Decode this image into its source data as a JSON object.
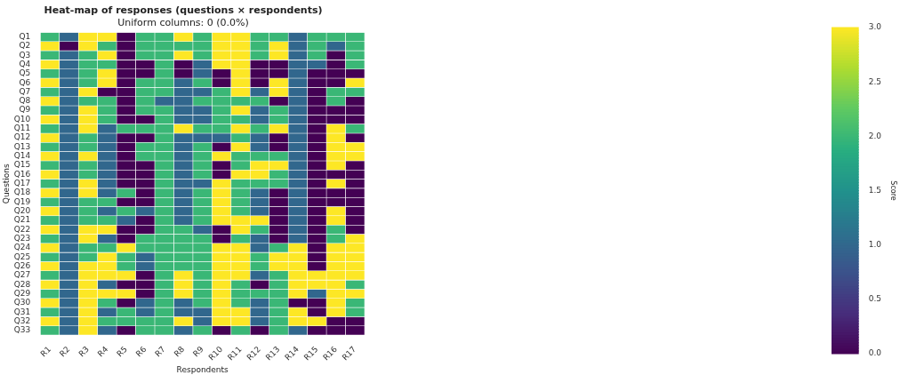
{
  "chart_data": {
    "type": "heatmap",
    "title": "Heat-map of responses (questions × respondents)",
    "subtitle": "Uniform columns: 0 (0.0%)",
    "xlabel": "Respondents",
    "ylabel": "Questions",
    "clabel": "Score",
    "categories": [
      "R1",
      "R2",
      "R3",
      "R4",
      "R5",
      "R6",
      "R7",
      "R8",
      "R9",
      "R10",
      "R11",
      "R12",
      "R13",
      "R14",
      "R15",
      "R16",
      "R17"
    ],
    "y_categories": [
      "Q1",
      "Q2",
      "Q3",
      "Q4",
      "Q5",
      "Q6",
      "Q7",
      "Q8",
      "Q9",
      "Q10",
      "Q11",
      "Q12",
      "Q13",
      "Q14",
      "Q15",
      "Q16",
      "Q17",
      "Q18",
      "Q19",
      "Q20",
      "Q21",
      "Q22",
      "Q23",
      "Q24",
      "Q25",
      "Q26",
      "Q27",
      "Q28",
      "Q29",
      "Q30",
      "Q31",
      "Q32",
      "Q33"
    ],
    "cells": [
      [
        2,
        1,
        3,
        3,
        0,
        2,
        2,
        3,
        2,
        3,
        3,
        2,
        2,
        1,
        2,
        2,
        2
      ],
      [
        3,
        0,
        3,
        2,
        0,
        2,
        2,
        2,
        2,
        3,
        3,
        2,
        3,
        1,
        2,
        1,
        2
      ],
      [
        2,
        1,
        2,
        3,
        0,
        2,
        2,
        3,
        2,
        3,
        3,
        2,
        3,
        1,
        2,
        0,
        2
      ],
      [
        3,
        1,
        2,
        2,
        0,
        0,
        2,
        0,
        1,
        3,
        3,
        0,
        0,
        1,
        1,
        0,
        2
      ],
      [
        2,
        1,
        2,
        3,
        0,
        0,
        2,
        0,
        1,
        0,
        3,
        0,
        0,
        1,
        0,
        0,
        0
      ],
      [
        3,
        1,
        2,
        3,
        0,
        2,
        2,
        1,
        2,
        0,
        3,
        0,
        3,
        1,
        0,
        0,
        3
      ],
      [
        2,
        1,
        3,
        0,
        0,
        2,
        2,
        1,
        1,
        2,
        3,
        1,
        3,
        1,
        0,
        2,
        2
      ],
      [
        3,
        1,
        2,
        2,
        0,
        2,
        1,
        1,
        2,
        2,
        2,
        2,
        0,
        1,
        0,
        2,
        0
      ],
      [
        2,
        1,
        3,
        2,
        0,
        2,
        2,
        1,
        1,
        2,
        3,
        1,
        2,
        1,
        0,
        0,
        0
      ],
      [
        3,
        1,
        3,
        2,
        0,
        0,
        2,
        1,
        1,
        2,
        2,
        1,
        2,
        1,
        0,
        0,
        0
      ],
      [
        2,
        1,
        3,
        1,
        2,
        2,
        2,
        3,
        2,
        2,
        3,
        2,
        3,
        1,
        0,
        3,
        2
      ],
      [
        3,
        1,
        2,
        1,
        0,
        0,
        2,
        1,
        1,
        1,
        2,
        1,
        0,
        1,
        0,
        3,
        0
      ],
      [
        2,
        1,
        2,
        1,
        0,
        2,
        2,
        1,
        2,
        0,
        3,
        1,
        0,
        1,
        0,
        3,
        3
      ],
      [
        3,
        1,
        3,
        1,
        0,
        2,
        2,
        1,
        2,
        3,
        2,
        2,
        2,
        1,
        0,
        3,
        3
      ],
      [
        2,
        1,
        2,
        1,
        0,
        0,
        2,
        1,
        2,
        0,
        2,
        3,
        3,
        1,
        0,
        3,
        0
      ],
      [
        3,
        1,
        2,
        1,
        0,
        0,
        2,
        1,
        2,
        0,
        3,
        3,
        2,
        1,
        0,
        0,
        0
      ],
      [
        2,
        1,
        3,
        1,
        0,
        0,
        2,
        1,
        1,
        3,
        2,
        2,
        2,
        1,
        0,
        3,
        0
      ],
      [
        3,
        1,
        3,
        1,
        2,
        0,
        2,
        1,
        2,
        3,
        2,
        1,
        0,
        1,
        0,
        0,
        0
      ],
      [
        2,
        1,
        2,
        2,
        0,
        0,
        2,
        1,
        2,
        3,
        2,
        1,
        0,
        1,
        0,
        0,
        0
      ],
      [
        3,
        1,
        2,
        1,
        2,
        1,
        2,
        1,
        2,
        3,
        2,
        1,
        0,
        1,
        0,
        3,
        0
      ],
      [
        2,
        1,
        2,
        2,
        1,
        0,
        2,
        1,
        2,
        3,
        3,
        3,
        0,
        1,
        0,
        3,
        0
      ],
      [
        3,
        1,
        3,
        3,
        0,
        0,
        2,
        2,
        1,
        0,
        3,
        2,
        0,
        1,
        0,
        2,
        0
      ],
      [
        2,
        1,
        3,
        1,
        0,
        2,
        2,
        2,
        2,
        0,
        2,
        1,
        0,
        1,
        0,
        2,
        3
      ],
      [
        3,
        1,
        2,
        2,
        3,
        2,
        2,
        2,
        2,
        3,
        3,
        1,
        2,
        3,
        0,
        3,
        3
      ],
      [
        2,
        1,
        2,
        3,
        2,
        1,
        2,
        2,
        2,
        3,
        3,
        2,
        3,
        3,
        0,
        3,
        3
      ],
      [
        3,
        1,
        3,
        3,
        2,
        1,
        2,
        2,
        2,
        3,
        3,
        2,
        3,
        3,
        0,
        3,
        3
      ],
      [
        2,
        1,
        3,
        3,
        3,
        0,
        2,
        3,
        2,
        3,
        3,
        1,
        2,
        3,
        3,
        3,
        3
      ],
      [
        3,
        1,
        3,
        1,
        0,
        0,
        2,
        3,
        2,
        3,
        2,
        0,
        2,
        3,
        3,
        3,
        2
      ],
      [
        2,
        1,
        3,
        3,
        3,
        0,
        2,
        3,
        2,
        3,
        2,
        2,
        2,
        3,
        1,
        3,
        3
      ],
      [
        3,
        1,
        3,
        2,
        0,
        1,
        2,
        1,
        2,
        3,
        2,
        1,
        2,
        0,
        0,
        3,
        2
      ],
      [
        2,
        1,
        3,
        1,
        2,
        1,
        2,
        1,
        1,
        3,
        3,
        1,
        2,
        3,
        0,
        3,
        2
      ],
      [
        3,
        1,
        3,
        2,
        2,
        2,
        2,
        3,
        1,
        3,
        3,
        1,
        2,
        3,
        3,
        0,
        0
      ],
      [
        2,
        1,
        3,
        1,
        0,
        2,
        2,
        1,
        2,
        0,
        2,
        0,
        2,
        1,
        0,
        0,
        0
      ]
    ],
    "clim": [
      0,
      3
    ],
    "cticks": [
      {
        "value": 0,
        "label": "0.0"
      },
      {
        "value": 0.5,
        "label": "0.5"
      },
      {
        "value": 1,
        "label": "1.0"
      },
      {
        "value": 1.5,
        "label": "1.5"
      },
      {
        "value": 2,
        "label": "2.0"
      },
      {
        "value": 2.5,
        "label": "2.5"
      },
      {
        "value": 3,
        "label": "3.0"
      }
    ]
  }
}
